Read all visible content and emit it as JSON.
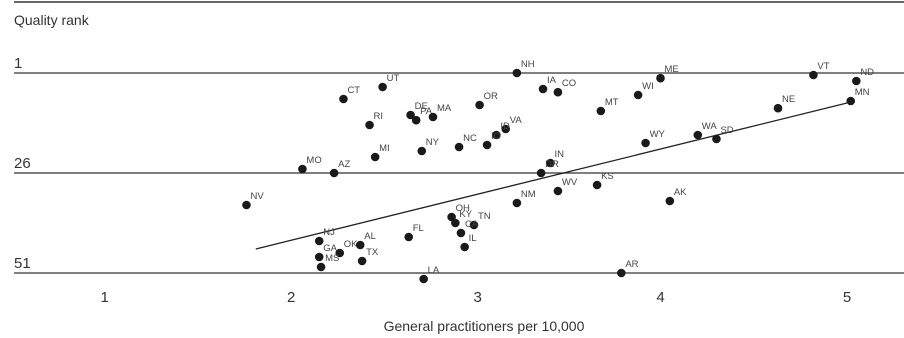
{
  "chart_data": {
    "type": "scatter",
    "ylabel": "Quality rank",
    "xlabel": "General practitioners per 10,000",
    "xlim": [
      1.75,
      5.35
    ],
    "ylim": [
      1,
      51
    ],
    "y_inverted": true,
    "x_ticks": [
      "1",
      "2",
      "3",
      "4",
      "5"
    ],
    "x_tick_values": [
      1.02,
      2.02,
      3.02,
      4.0,
      5.0
    ],
    "y_ticks": [
      "1",
      "26",
      "51"
    ],
    "y_tick_values": [
      1,
      26,
      51
    ],
    "trend_line": {
      "x1": 1.83,
      "y1": 45,
      "x2": 5.0,
      "y2": 8.5
    },
    "points": [
      {
        "label": "NH",
        "x": 3.23,
        "y": 1.0
      },
      {
        "label": "VT",
        "x": 4.82,
        "y": 1.5
      },
      {
        "label": "ND",
        "x": 5.05,
        "y": 3.0
      },
      {
        "label": "ME",
        "x": 4.0,
        "y": 2.3
      },
      {
        "label": "IA",
        "x": 3.37,
        "y": 5.0
      },
      {
        "label": "CO",
        "x": 3.45,
        "y": 5.8
      },
      {
        "label": "WI",
        "x": 3.88,
        "y": 6.5
      },
      {
        "label": "MN",
        "x": 5.02,
        "y": 8.0
      },
      {
        "label": "UT",
        "x": 2.51,
        "y": 4.5
      },
      {
        "label": "CT",
        "x": 2.3,
        "y": 7.5
      },
      {
        "label": "OR",
        "x": 3.03,
        "y": 9.0
      },
      {
        "label": "MT",
        "x": 3.68,
        "y": 10.5
      },
      {
        "label": "NE",
        "x": 4.63,
        "y": 9.8
      },
      {
        "label": "RI",
        "x": 2.44,
        "y": 14.0
      },
      {
        "label": "DE",
        "x": 2.66,
        "y": 11.5
      },
      {
        "label": "PA",
        "x": 2.69,
        "y": 12.8
      },
      {
        "label": "MA",
        "x": 2.78,
        "y": 12.0
      },
      {
        "label": "VA",
        "x": 3.17,
        "y": 15.0
      },
      {
        "label": "ID",
        "x": 3.12,
        "y": 16.5
      },
      {
        "label": "SD",
        "x": 4.3,
        "y": 17.5
      },
      {
        "label": "WA",
        "x": 4.2,
        "y": 16.5
      },
      {
        "label": "WY",
        "x": 3.92,
        "y": 18.5
      },
      {
        "label": "NC",
        "x": 2.92,
        "y": 19.5
      },
      {
        "label": "IO",
        "x": 3.07,
        "y": 19.0
      },
      {
        "label": "NY",
        "x": 2.72,
        "y": 20.5
      },
      {
        "label": "MI",
        "x": 2.47,
        "y": 22.0
      },
      {
        "label": "MO",
        "x": 2.08,
        "y": 25.0
      },
      {
        "label": "AZ",
        "x": 2.25,
        "y": 26.0
      },
      {
        "label": "IN",
        "x": 3.41,
        "y": 23.5
      },
      {
        "label": "DR",
        "x": 3.36,
        "y": 26.0
      },
      {
        "label": "KS",
        "x": 3.66,
        "y": 29.0
      },
      {
        "label": "WV",
        "x": 3.45,
        "y": 30.5
      },
      {
        "label": "NM",
        "x": 3.23,
        "y": 33.5
      },
      {
        "label": "AK",
        "x": 4.05,
        "y": 33.0
      },
      {
        "label": "NV",
        "x": 1.78,
        "y": 34.0
      },
      {
        "label": "OH",
        "x": 2.88,
        "y": 37.0
      },
      {
        "label": "KY",
        "x": 2.9,
        "y": 38.5
      },
      {
        "label": "TN",
        "x": 3.0,
        "y": 39.0
      },
      {
        "label": "CA",
        "x": 2.93,
        "y": 41.0
      },
      {
        "label": "FL",
        "x": 2.65,
        "y": 42.0
      },
      {
        "label": "IL",
        "x": 2.95,
        "y": 44.5
      },
      {
        "label": "NJ",
        "x": 2.17,
        "y": 43.0
      },
      {
        "label": "AL",
        "x": 2.39,
        "y": 44.0
      },
      {
        "label": "OK",
        "x": 2.28,
        "y": 46.0
      },
      {
        "label": "GA",
        "x": 2.17,
        "y": 47.0
      },
      {
        "label": "TX",
        "x": 2.4,
        "y": 48.0
      },
      {
        "label": "MS",
        "x": 2.18,
        "y": 49.5
      },
      {
        "label": "LA",
        "x": 2.73,
        "y": 52.5
      },
      {
        "label": "AR",
        "x": 3.79,
        "y": 51.0
      }
    ]
  }
}
